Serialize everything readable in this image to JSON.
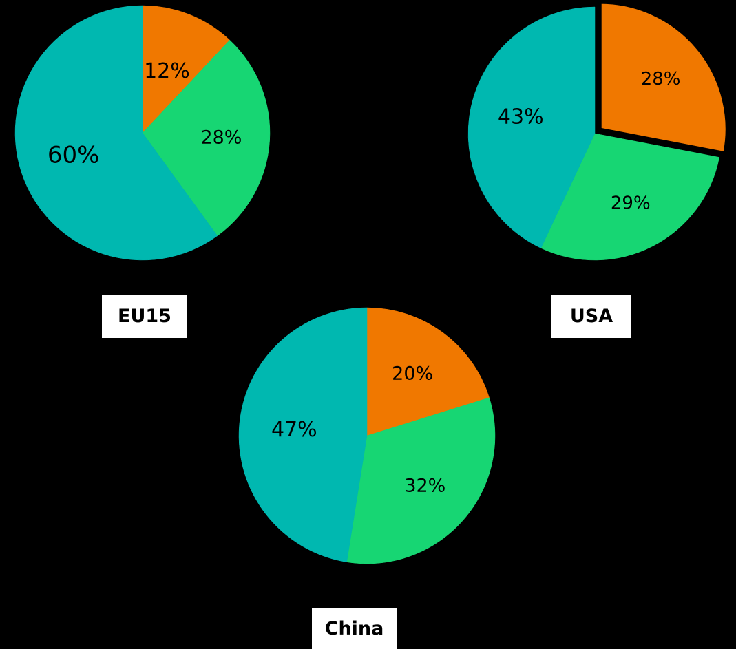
{
  "chart_data": [
    {
      "type": "pie",
      "title": "EU15",
      "slices": [
        {
          "label": "12%",
          "value": 12,
          "color": "#F07800",
          "exploded": false
        },
        {
          "label": "28%",
          "value": 28,
          "color": "#17D673",
          "exploded": false
        },
        {
          "label": "60%",
          "value": 60,
          "color": "#00B8B0",
          "exploded": false
        }
      ]
    },
    {
      "type": "pie",
      "title": "USA",
      "slices": [
        {
          "label": "28%",
          "value": 28,
          "color": "#F07800",
          "exploded": true
        },
        {
          "label": "29%",
          "value": 29,
          "color": "#17D673",
          "exploded": false
        },
        {
          "label": "43%",
          "value": 43,
          "color": "#00B8B0",
          "exploded": false
        }
      ]
    },
    {
      "type": "pie",
      "title": "China",
      "slices": [
        {
          "label": "20%",
          "value": 20,
          "color": "#F07800",
          "exploded": false
        },
        {
          "label": "32%",
          "value": 32,
          "color": "#17D673",
          "exploded": false
        },
        {
          "label": "47%",
          "value": 47,
          "color": "#00B8B0",
          "exploded": false
        }
      ]
    }
  ]
}
